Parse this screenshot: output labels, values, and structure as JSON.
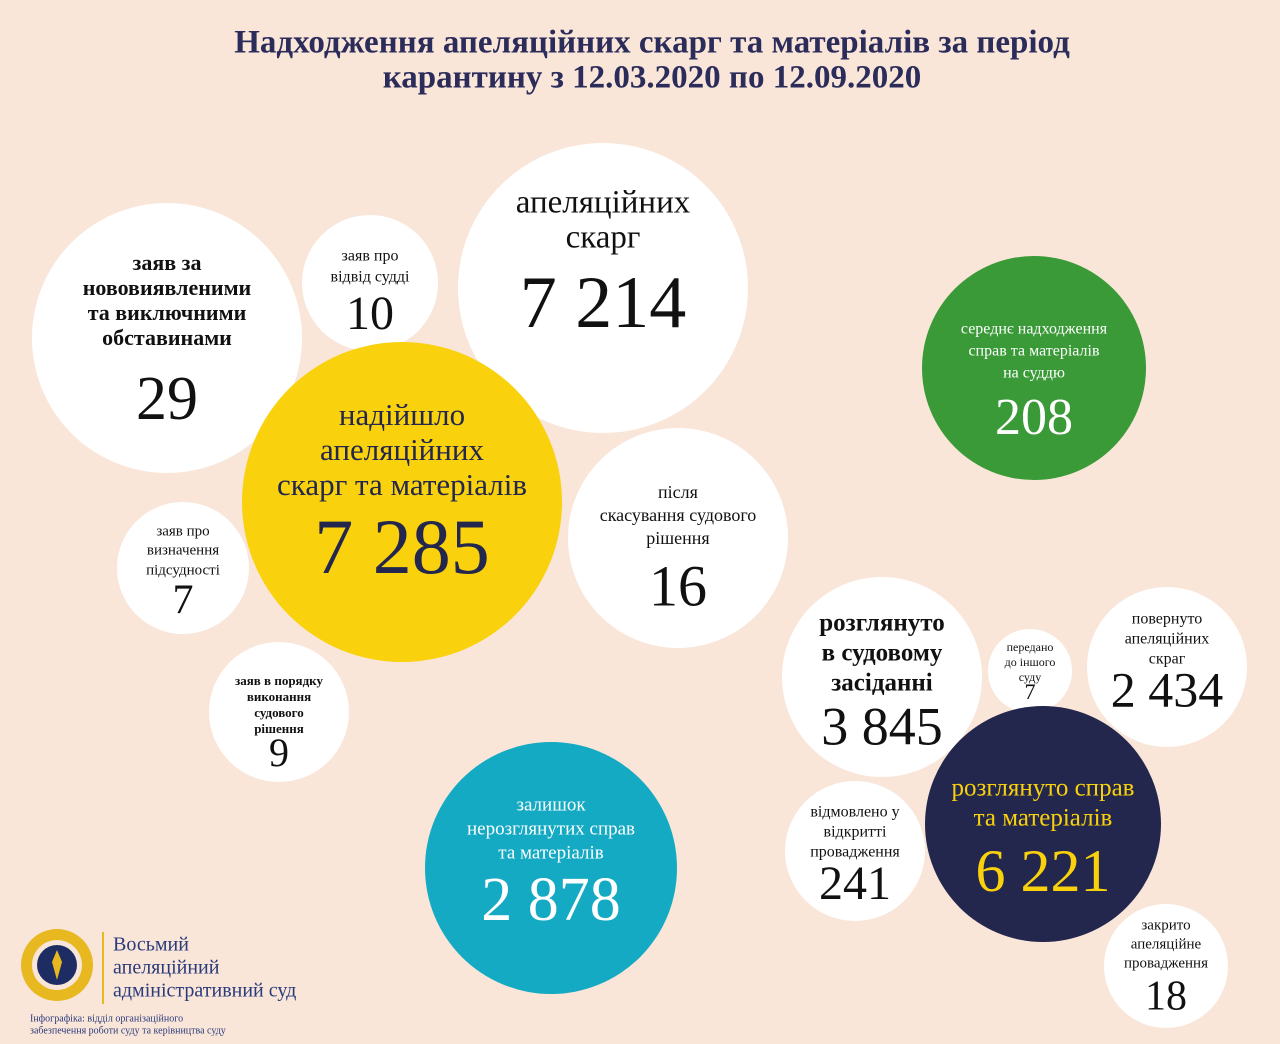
{
  "header": {
    "title": [
      "Надходження апеляційних скарг та матеріалів за період",
      "карантину з 12.03.2020 по 12.09.2020"
    ]
  },
  "bubbles": [
    {
      "label": [
        "заяв за",
        "нововиявленими",
        "та виключними",
        "обставинами"
      ],
      "value": "29"
    },
    {
      "label": [
        "заяв про",
        "відвід судді"
      ],
      "value": "10"
    },
    {
      "label": [
        "апеляційних",
        "скарг"
      ],
      "value": "7 214"
    },
    {
      "label": [
        "після",
        "скасування судового",
        "рішення"
      ],
      "value": "16"
    },
    {
      "label": [
        "заяв про",
        "визначення",
        "підсудності"
      ],
      "value": "7"
    },
    {
      "label": [
        "заяв в порядку",
        "виконання",
        "судового",
        "рішення"
      ],
      "value": "9"
    },
    {
      "label": [
        "надійшло",
        "апеляційних",
        "скарг та матеріалів"
      ],
      "value": "7 285"
    },
    {
      "label": [
        "середнє надходження",
        "справ та матеріалів",
        "на суддю"
      ],
      "value": "208"
    },
    {
      "label": [
        "залишок",
        "нерозглянутих справ",
        "та матеріалів"
      ],
      "value": "2 878"
    },
    {
      "label": [
        "розглянуто",
        "в судовому",
        "засіданні"
      ],
      "value": "3 845"
    },
    {
      "label": [
        "передано",
        "до іншого",
        "суду"
      ],
      "value": "7"
    },
    {
      "label": [
        "повернуто",
        "апеляційних",
        "скраг"
      ],
      "value": "2 434"
    },
    {
      "label": [
        "відмовлено у",
        "відкритті",
        "провадження"
      ],
      "value": "241"
    },
    {
      "label": [
        "розглянуто справ",
        "та матеріалів"
      ],
      "value": "6 221"
    },
    {
      "label": [
        "закрито",
        "апеляційне",
        "провадження"
      ],
      "value": "18"
    }
  ],
  "footer": {
    "court": [
      "Восьмий",
      "апеляційний",
      "адміністративний суд"
    ],
    "credit": [
      "Інфографіка: відділ організаційного",
      "забезпечення роботи суду та керівництва суду"
    ]
  }
}
